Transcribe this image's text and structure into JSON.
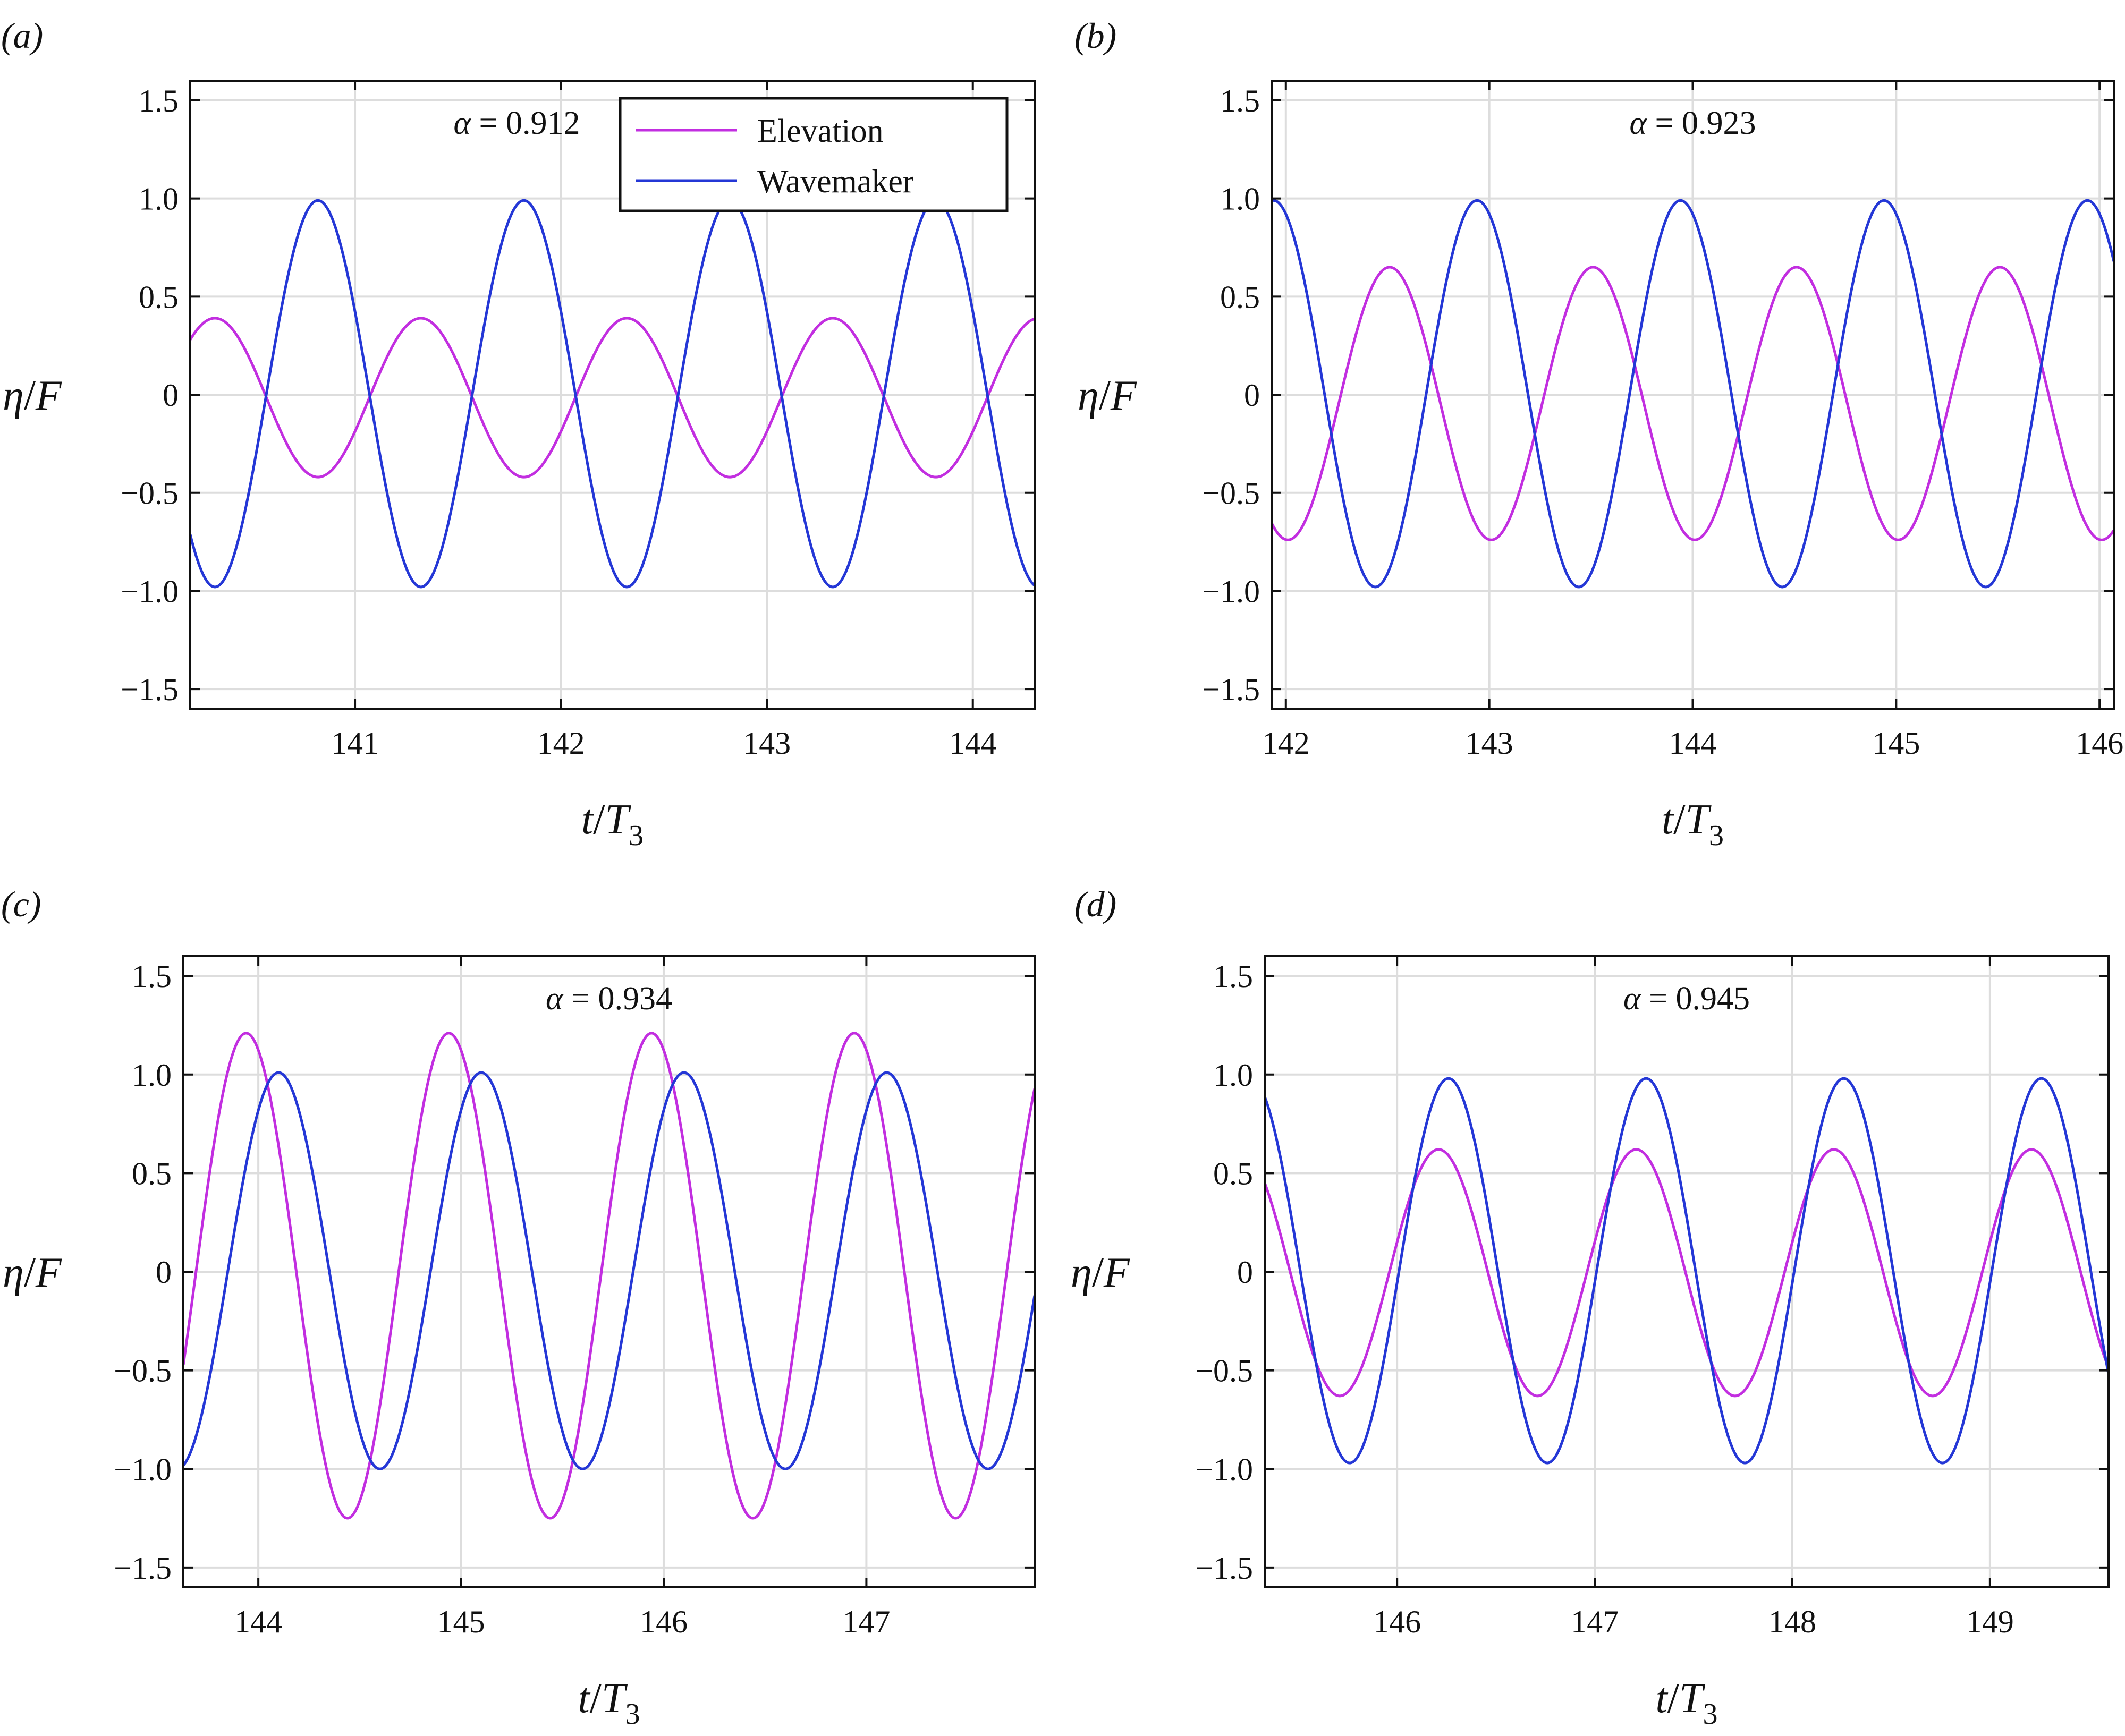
{
  "legend": {
    "entries": [
      {
        "label": "Elevation",
        "color": "#c22ee0"
      },
      {
        "label": "Wavemaker",
        "color": "#2437d6"
      }
    ]
  },
  "axis_labels": {
    "y": {
      "symbol": "η",
      "slash": "/",
      "denominator": "F"
    },
    "x": {
      "symbol": "t",
      "slash": "/",
      "denominator": "T",
      "subscript": "3"
    }
  },
  "chart_data": [
    {
      "type": "line",
      "panel_label": "(a)",
      "annotation": {
        "symbol": "α",
        "text": " = 0.912"
      },
      "xlim": [
        140.2,
        144.3
      ],
      "ylim": [
        -1.6,
        1.6
      ],
      "xticks": [
        141,
        142,
        143,
        144
      ],
      "yticks": [
        -1.5,
        -1.0,
        -0.5,
        0,
        0.5,
        1.0,
        1.5
      ],
      "ytick_labels": [
        "−1.5",
        "−1.0",
        "−0.5",
        "0",
        "0.5",
        "1.0",
        "1.5"
      ],
      "grid": true,
      "legend_position": "top-right",
      "series": [
        {
          "name": "Elevation",
          "color": "#c22ee0",
          "period": 1.0,
          "max": 0.39,
          "min": -0.42,
          "peak_at": 141.32
        },
        {
          "name": "Wavemaker",
          "color": "#2437d6",
          "period": 1.0,
          "max": 0.99,
          "min": -0.98,
          "peak_at": 140.82
        }
      ]
    },
    {
      "type": "line",
      "panel_label": "(b)",
      "annotation": {
        "symbol": "α",
        "text": " = 0.923"
      },
      "xlim": [
        141.93,
        146.07
      ],
      "ylim": [
        -1.6,
        1.6
      ],
      "xticks": [
        142,
        143,
        144,
        145,
        146
      ],
      "yticks": [
        -1.5,
        -1.0,
        -0.5,
        0,
        0.5,
        1.0,
        1.5
      ],
      "ytick_labels": [
        "−1.5",
        "−1.0",
        "−0.5",
        "0",
        "0.5",
        "1.0",
        "1.5"
      ],
      "grid": true,
      "series": [
        {
          "name": "Elevation",
          "color": "#c22ee0",
          "period": 1.0,
          "max": 0.65,
          "min": -0.74,
          "peak_at": 142.51
        },
        {
          "name": "Wavemaker",
          "color": "#2437d6",
          "period": 1.0,
          "max": 0.99,
          "min": -0.98,
          "peak_at": 142.94
        }
      ]
    },
    {
      "type": "line",
      "panel_label": "(c)",
      "annotation": {
        "symbol": "α",
        "text": " = 0.934"
      },
      "xlim": [
        143.63,
        147.83
      ],
      "ylim": [
        -1.6,
        1.6
      ],
      "xticks": [
        144,
        145,
        146,
        147
      ],
      "yticks": [
        -1.5,
        -1.0,
        -0.5,
        0,
        0.5,
        1.0,
        1.5
      ],
      "ytick_labels": [
        "−1.5",
        "−1.0",
        "−0.5",
        "0",
        "0.5",
        "1.0",
        "1.5"
      ],
      "grid": true,
      "series": [
        {
          "name": "Elevation",
          "color": "#c22ee0",
          "period": 1.0,
          "max": 1.21,
          "min": -1.25,
          "peak_at": 143.94
        },
        {
          "name": "Wavemaker",
          "color": "#2437d6",
          "period": 1.0,
          "max": 1.01,
          "min": -1.0,
          "peak_at": 144.1
        }
      ]
    },
    {
      "type": "line",
      "panel_label": "(d)",
      "annotation": {
        "symbol": "α",
        "text": " = 0.945"
      },
      "xlim": [
        145.33,
        149.6
      ],
      "ylim": [
        -1.6,
        1.6
      ],
      "xticks": [
        146,
        147,
        148,
        149
      ],
      "yticks": [
        -1.5,
        -1.0,
        -0.5,
        0,
        0.5,
        1.0,
        1.5
      ],
      "ytick_labels": [
        "−1.5",
        "−1.0",
        "−0.5",
        "0",
        "0.5",
        "1.0",
        "1.5"
      ],
      "grid": true,
      "series": [
        {
          "name": "Elevation",
          "color": "#c22ee0",
          "period": 1.0,
          "max": 0.62,
          "min": -0.63,
          "peak_at": 146.21
        },
        {
          "name": "Wavemaker",
          "color": "#2437d6",
          "period": 1.0,
          "max": 0.98,
          "min": -0.97,
          "peak_at": 146.26
        }
      ]
    }
  ]
}
